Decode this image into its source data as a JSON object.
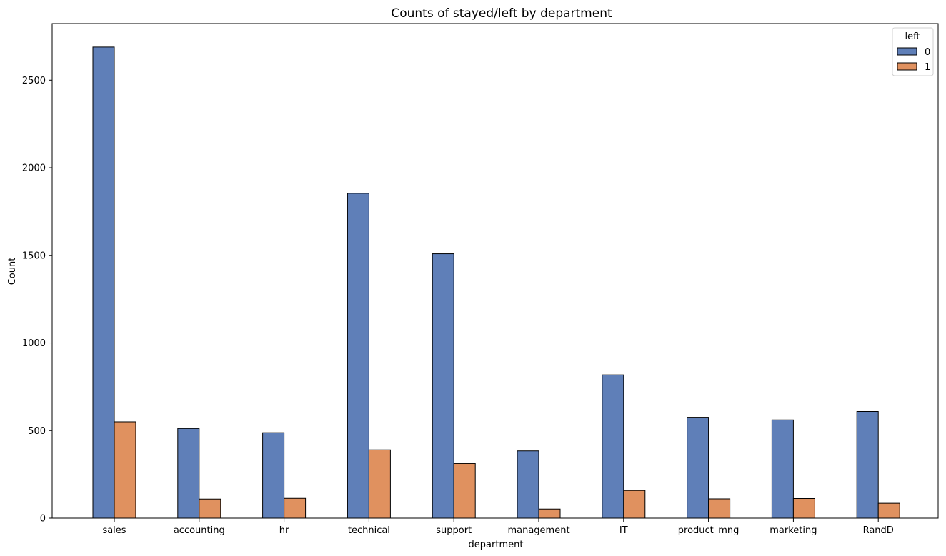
{
  "chart_data": {
    "type": "bar",
    "title": "Counts of stayed/left by department",
    "xlabel": "department",
    "ylabel": "Count",
    "categories": [
      "sales",
      "accounting",
      "hr",
      "technical",
      "support",
      "management",
      "IT",
      "product_mng",
      "marketing",
      "RandD"
    ],
    "series": [
      {
        "name": "0",
        "color": "#5f7fb8",
        "values": [
          2689,
          512,
          488,
          1854,
          1509,
          384,
          818,
          576,
          561,
          609
        ]
      },
      {
        "name": "1",
        "color": "#e0915f",
        "values": [
          550,
          109,
          113,
          390,
          312,
          52,
          158,
          110,
          112,
          85
        ]
      }
    ],
    "legend": {
      "title": "left",
      "placement": "top-right"
    },
    "yticks": [
      0,
      500,
      1000,
      1500,
      2000,
      2500
    ],
    "ylim": [
      0,
      2823
    ],
    "grid": false
  }
}
